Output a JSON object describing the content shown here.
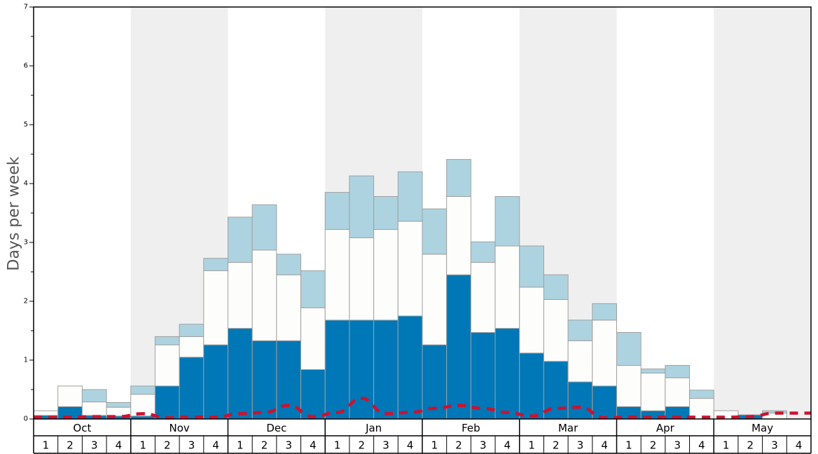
{
  "chart_data": {
    "type": "bar",
    "ylabel": "Days per week",
    "xlabel": "",
    "ylim": [
      0,
      7
    ],
    "yticks": [
      0,
      1,
      2,
      3,
      4,
      5,
      6,
      7
    ],
    "months": [
      "Oct",
      "Nov",
      "Dec",
      "Jan",
      "Feb",
      "Mar",
      "Apr",
      "May"
    ],
    "weeks": [
      "1",
      "2",
      "3",
      "4"
    ],
    "shaded_months": [
      "Nov",
      "Jan",
      "Mar",
      "May"
    ],
    "grid": false,
    "stacked": true,
    "series": [
      {
        "key": "bottom",
        "color": "#0077b6",
        "values": [
          0.06,
          0.21,
          0.06,
          0.05,
          0.05,
          0.56,
          1.05,
          1.26,
          1.54,
          1.33,
          1.33,
          0.84,
          1.68,
          1.68,
          1.68,
          1.75,
          1.26,
          2.45,
          1.47,
          1.54,
          1.12,
          0.98,
          0.63,
          0.56,
          0.21,
          0.14,
          0.21,
          0.0,
          0.0,
          0.07,
          0.0,
          0.0
        ]
      },
      {
        "key": "middle",
        "color": "#fdfdfb",
        "values": [
          0.08,
          0.35,
          0.23,
          0.15,
          0.37,
          0.7,
          0.35,
          1.26,
          1.12,
          1.54,
          1.12,
          1.05,
          1.54,
          1.4,
          1.54,
          1.61,
          1.54,
          1.33,
          1.19,
          1.4,
          1.12,
          1.05,
          0.7,
          1.12,
          0.7,
          0.64,
          0.49,
          0.35,
          0.14,
          0.0,
          0.1,
          0.0
        ]
      },
      {
        "key": "top",
        "color": "#add3e0",
        "values": [
          0.0,
          0.0,
          0.21,
          0.08,
          0.14,
          0.14,
          0.21,
          0.21,
          0.77,
          0.77,
          0.35,
          0.63,
          0.63,
          1.05,
          0.56,
          0.84,
          0.77,
          0.63,
          0.35,
          0.84,
          0.7,
          0.42,
          0.35,
          0.28,
          0.56,
          0.07,
          0.21,
          0.14,
          0.0,
          0.0,
          0.04,
          0.0
        ]
      }
    ],
    "line": {
      "key": "dashed",
      "color": "#d0102e",
      "values": [
        0.03,
        0.03,
        0.04,
        0.04,
        0.09,
        0.02,
        0.03,
        0.03,
        0.09,
        0.11,
        0.23,
        0.04,
        0.11,
        0.35,
        0.09,
        0.11,
        0.18,
        0.23,
        0.18,
        0.11,
        0.05,
        0.18,
        0.2,
        0.02,
        0.03,
        0.03,
        0.03,
        0.03,
        0.03,
        0.04,
        0.1,
        0.1
      ]
    }
  }
}
